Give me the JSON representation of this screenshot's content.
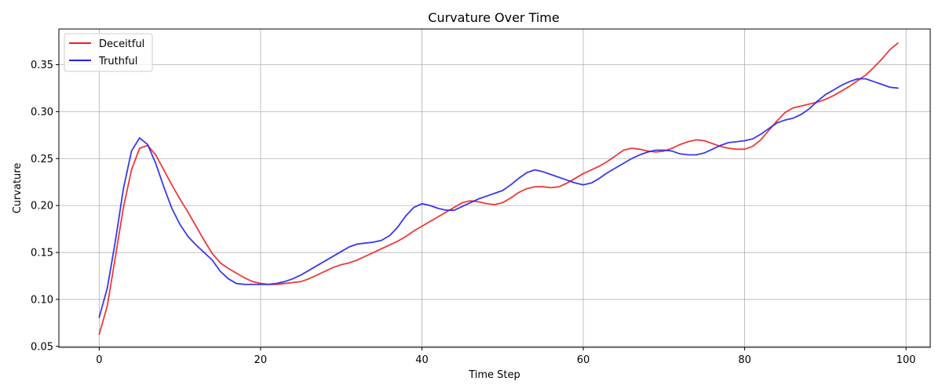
{
  "chart_data": {
    "type": "line",
    "title": "Curvature Over Time",
    "xlabel": "Time Step",
    "ylabel": "Curvature",
    "xlim": [
      -5,
      103
    ],
    "ylim": [
      0.049,
      0.388
    ],
    "xticks": [
      0,
      20,
      40,
      60,
      80,
      100
    ],
    "xtick_labels": [
      "0",
      "20",
      "40",
      "60",
      "80",
      "100"
    ],
    "yticks": [
      0.05,
      0.1,
      0.15,
      0.2,
      0.25,
      0.3,
      0.35
    ],
    "ytick_labels": [
      "0.05",
      "0.10",
      "0.15",
      "0.20",
      "0.25",
      "0.30",
      "0.35"
    ],
    "grid": true,
    "legend_position": "top-left",
    "x": [
      0,
      1,
      2,
      3,
      4,
      5,
      6,
      7,
      8,
      9,
      10,
      11,
      12,
      13,
      14,
      15,
      16,
      17,
      18,
      19,
      20,
      21,
      22,
      23,
      24,
      25,
      26,
      27,
      28,
      29,
      30,
      31,
      32,
      33,
      34,
      35,
      36,
      37,
      38,
      39,
      40,
      41,
      42,
      43,
      44,
      45,
      46,
      47,
      48,
      49,
      50,
      51,
      52,
      53,
      54,
      55,
      56,
      57,
      58,
      59,
      60,
      61,
      62,
      63,
      64,
      65,
      66,
      67,
      68,
      69,
      70,
      71,
      72,
      73,
      74,
      75,
      76,
      77,
      78,
      79,
      80,
      81,
      82,
      83,
      84,
      85,
      86,
      87,
      88,
      89,
      90,
      91,
      92,
      93,
      94,
      95,
      96,
      97,
      98,
      99
    ],
    "series": [
      {
        "name": "Deceitful",
        "color": "#ee2222",
        "values": [
          0.063,
          0.093,
          0.145,
          0.198,
          0.238,
          0.261,
          0.264,
          0.254,
          0.238,
          0.222,
          0.207,
          0.193,
          0.178,
          0.163,
          0.149,
          0.139,
          0.133,
          0.128,
          0.123,
          0.119,
          0.117,
          0.116,
          0.116,
          0.117,
          0.118,
          0.119,
          0.122,
          0.126,
          0.13,
          0.134,
          0.137,
          0.139,
          0.142,
          0.146,
          0.15,
          0.154,
          0.158,
          0.162,
          0.167,
          0.173,
          0.178,
          0.183,
          0.188,
          0.193,
          0.198,
          0.203,
          0.205,
          0.204,
          0.202,
          0.201,
          0.203,
          0.208,
          0.214,
          0.218,
          0.22,
          0.22,
          0.219,
          0.22,
          0.224,
          0.229,
          0.234,
          0.238,
          0.242,
          0.247,
          0.253,
          0.259,
          0.261,
          0.26,
          0.258,
          0.257,
          0.258,
          0.261,
          0.265,
          0.268,
          0.27,
          0.269,
          0.266,
          0.263,
          0.261,
          0.26,
          0.26,
          0.263,
          0.27,
          0.28,
          0.29,
          0.299,
          0.304,
          0.306,
          0.308,
          0.31,
          0.313,
          0.317,
          0.322,
          0.327,
          0.333,
          0.339,
          0.347,
          0.356,
          0.366,
          0.373
        ]
      },
      {
        "name": "Truthful",
        "color": "#2222ee",
        "values": [
          0.081,
          0.112,
          0.162,
          0.218,
          0.258,
          0.272,
          0.265,
          0.245,
          0.22,
          0.197,
          0.18,
          0.167,
          0.158,
          0.15,
          0.142,
          0.13,
          0.122,
          0.117,
          0.116,
          0.116,
          0.116,
          0.116,
          0.117,
          0.119,
          0.122,
          0.126,
          0.131,
          0.136,
          0.141,
          0.146,
          0.151,
          0.156,
          0.159,
          0.16,
          0.161,
          0.163,
          0.168,
          0.177,
          0.189,
          0.198,
          0.202,
          0.2,
          0.197,
          0.195,
          0.195,
          0.199,
          0.203,
          0.207,
          0.21,
          0.213,
          0.216,
          0.222,
          0.229,
          0.235,
          0.238,
          0.236,
          0.233,
          0.23,
          0.227,
          0.224,
          0.222,
          0.224,
          0.229,
          0.235,
          0.24,
          0.245,
          0.25,
          0.254,
          0.257,
          0.259,
          0.259,
          0.258,
          0.255,
          0.254,
          0.254,
          0.256,
          0.26,
          0.264,
          0.267,
          0.268,
          0.269,
          0.271,
          0.276,
          0.282,
          0.288,
          0.291,
          0.293,
          0.297,
          0.303,
          0.311,
          0.318,
          0.323,
          0.328,
          0.332,
          0.335,
          0.335,
          0.332,
          0.329,
          0.326,
          0.325
        ]
      }
    ]
  }
}
